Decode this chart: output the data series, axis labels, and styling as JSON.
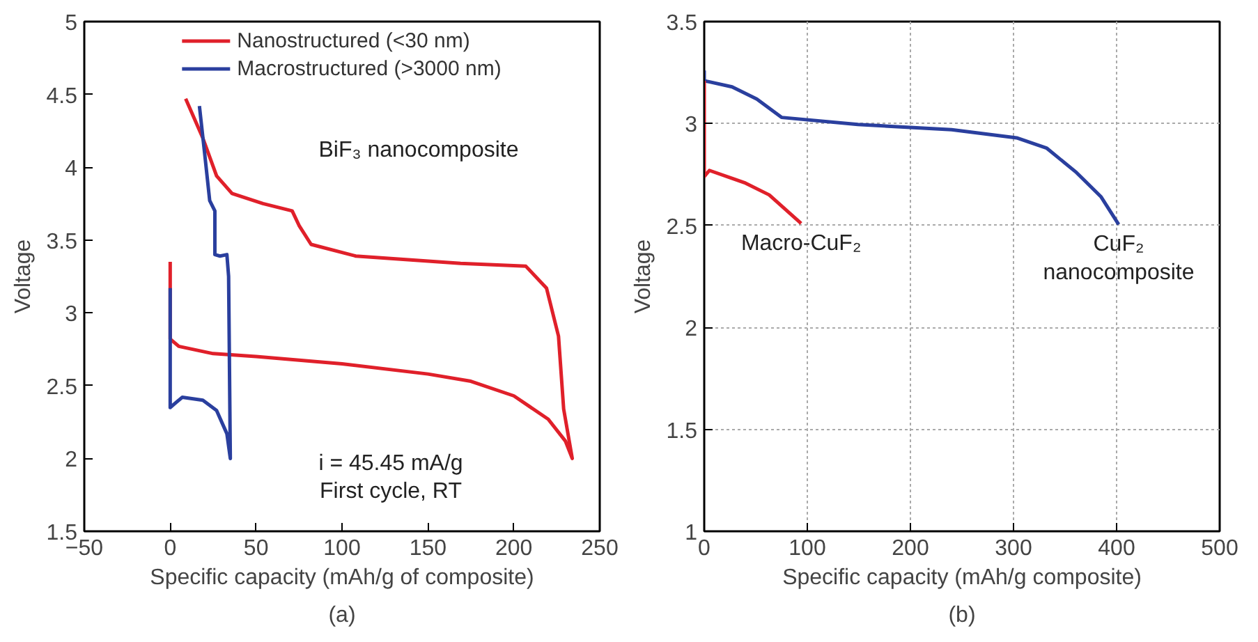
{
  "chart_data": [
    {
      "type": "line",
      "title": "(a)",
      "xlabel": "Specific capacity (mAh/g of composite)",
      "ylabel": "Voltage",
      "xlim": [
        -50,
        250
      ],
      "xticks": [
        {
          "value": -50,
          "label": "−50"
        },
        0,
        50,
        100,
        150,
        200,
        250
      ],
      "ylim": [
        1.5,
        5
      ],
      "yticks": [
        1.5,
        2,
        2.5,
        3,
        3.5,
        4,
        4.5,
        5
      ],
      "grid": false,
      "legend": "top",
      "annotations": [
        "BiF₃ nanocomposite",
        "i = 45.45 mA/g",
        "First cycle, RT"
      ],
      "series": [
        {
          "name": "Nanostructured (<30 nm)",
          "color": "#e0202a",
          "x": [
            0,
            0,
            5,
            25,
            50,
            100,
            150,
            175,
            200,
            220,
            230,
            234,
            229,
            226,
            219,
            207,
            169,
            108,
            82,
            75,
            71,
            54,
            36,
            27,
            19,
            9
          ],
          "values": [
            3.35,
            2.82,
            2.77,
            2.72,
            2.7,
            2.65,
            2.58,
            2.53,
            2.43,
            2.27,
            2.12,
            2.0,
            2.34,
            2.84,
            3.17,
            3.32,
            3.34,
            3.39,
            3.47,
            3.6,
            3.7,
            3.75,
            3.82,
            3.94,
            4.2,
            4.47
          ]
        },
        {
          "name": "Macrostructured (>3000 nm)",
          "color": "#2a3f9e",
          "x": [
            0,
            0,
            7,
            19,
            27,
            33,
            35,
            34,
            33,
            29,
            26,
            26,
            23,
            20,
            17
          ],
          "values": [
            3.17,
            2.35,
            2.42,
            2.4,
            2.33,
            2.17,
            2.0,
            3.25,
            3.4,
            3.39,
            3.4,
            3.7,
            3.77,
            4.1,
            4.42
          ]
        }
      ]
    },
    {
      "type": "line",
      "title": "(b)",
      "xlabel": "Specific capacity (mAh/g composite)",
      "ylabel": "Voltage",
      "xlim": [
        0,
        500
      ],
      "xticks": [
        0,
        100,
        200,
        300,
        400,
        500
      ],
      "ylim": [
        1,
        3.5
      ],
      "yticks": [
        1,
        1.5,
        2,
        2.5,
        3,
        3.5
      ],
      "grid": true,
      "legend": false,
      "series": [
        {
          "name": "CuF₂ nanocomposite",
          "color": "#2a3f9e",
          "x": [
            0,
            0,
            27,
            51,
            75,
            149,
            240,
            303,
            332,
            361,
            385,
            402
          ],
          "values": [
            3.26,
            3.21,
            3.18,
            3.12,
            3.03,
            2.995,
            2.97,
            2.93,
            2.88,
            2.76,
            2.64,
            2.505
          ]
        },
        {
          "name": "Macro-CuF₂",
          "color": "#e0202a",
          "x": [
            0,
            0,
            5,
            39,
            63,
            94
          ],
          "values": [
            3.21,
            2.74,
            2.77,
            2.71,
            2.65,
            2.51
          ]
        }
      ]
    }
  ]
}
